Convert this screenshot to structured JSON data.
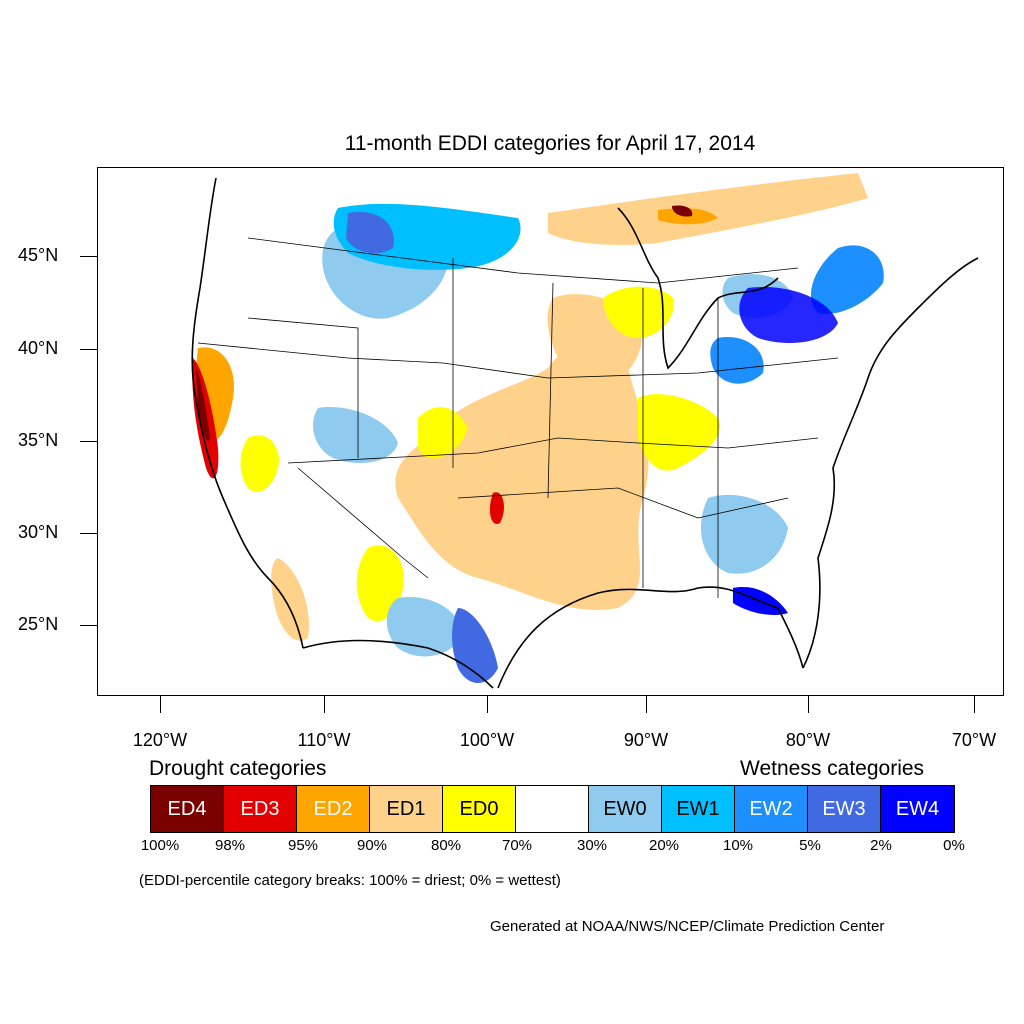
{
  "title": "11-month EDDI categories for April 17, 2014",
  "lat_labels": [
    "45°N",
    "40°N",
    "35°N",
    "30°N",
    "25°N"
  ],
  "lon_labels": [
    "120°W",
    "110°W",
    "100°W",
    "90°W",
    "80°W",
    "70°W"
  ],
  "legend": {
    "drought_heading": "Drought categories",
    "wetness_heading": "Wetness categories",
    "categories": [
      {
        "label": "ED4",
        "color": "#7a0000",
        "text_color": "#ffffff"
      },
      {
        "label": "ED3",
        "color": "#e30000",
        "text_color": "#ffffff"
      },
      {
        "label": "ED2",
        "color": "#ffa500",
        "text_color": "#ffffff"
      },
      {
        "label": "ED1",
        "color": "#ffd28c",
        "text_color": "#000000"
      },
      {
        "label": "ED0",
        "color": "#ffff00",
        "text_color": "#000000"
      },
      {
        "label": "",
        "color": "#ffffff",
        "text_color": "#000000"
      },
      {
        "label": "EW0",
        "color": "#8fcbee",
        "text_color": "#000000"
      },
      {
        "label": "EW1",
        "color": "#00bfff",
        "text_color": "#000000"
      },
      {
        "label": "EW2",
        "color": "#1e8fff",
        "text_color": "#ffffff"
      },
      {
        "label": "EW3",
        "color": "#4169e1",
        "text_color": "#ffffff"
      },
      {
        "label": "EW4",
        "color": "#0000ff",
        "text_color": "#ffffff"
      }
    ],
    "percentiles": [
      "100%",
      "98%",
      "95%",
      "90%",
      "80%",
      "70%",
      "30%",
      "20%",
      "10%",
      "5%",
      "2%",
      "0%"
    ]
  },
  "note": "(EDDI-percentile category breaks: 100% = driest; 0% = wettest)",
  "credit": "Generated at NOAA/NWS/NCEP/Climate Prediction Center"
}
